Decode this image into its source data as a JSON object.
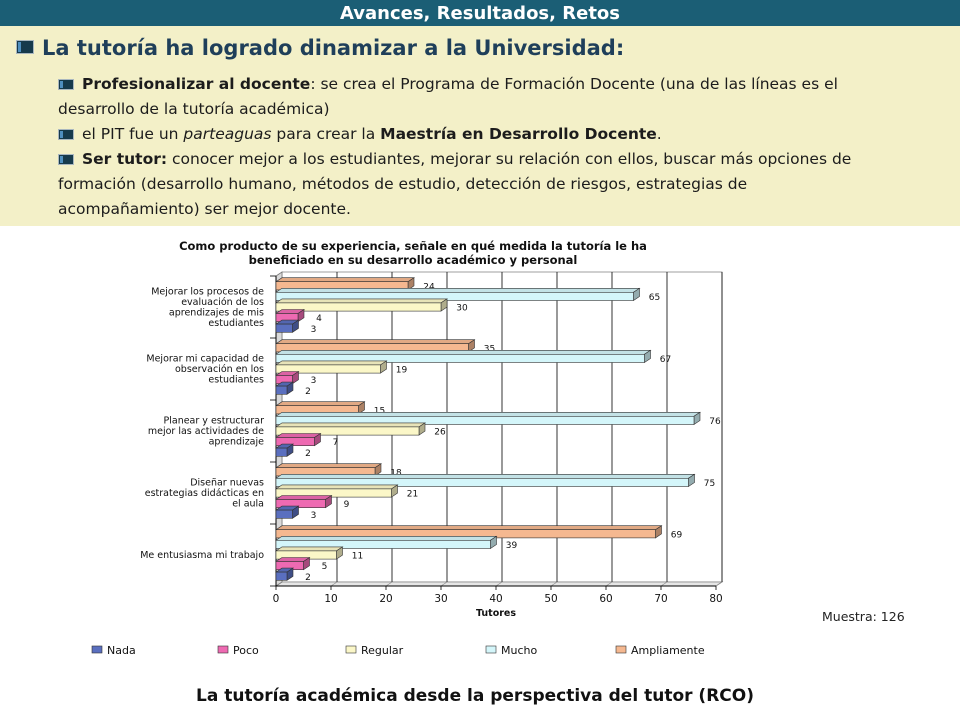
{
  "header": {
    "title": "Avances, Resultados, Retos"
  },
  "content": {
    "heading": "La tutoría ha logrado dinamizar a la Universidad:",
    "items": [
      {
        "bold": "Profesionalizar al docente",
        "rest1": ": se crea el Programa de Formación Docente (una de las líneas es el",
        "rest2": "desarrollo de la tutoría académica)"
      },
      {
        "pre": "el PIT fue un ",
        "italic": "parteaguas",
        "mid": " para crear la ",
        "bold": "Maestría en Desarrollo Docente",
        "post": "."
      },
      {
        "bold": "Ser tutor:",
        "rest1": " conocer mejor a los estudiantes, mejorar su relación con ellos, buscar más opciones de",
        "rest2": "formación (desarrollo humano, métodos de estudio, detección de riesgos, estrategias de",
        "rest3": "acompañamiento) ser mejor docente."
      }
    ]
  },
  "chart_data": {
    "type": "bar",
    "orientation": "horizontal",
    "title_lines": [
      "Como producto de su experiencia, señale en qué medida la tutoría le ha",
      "beneficiado en su desarrollo académico y personal"
    ],
    "xlabel": "Tutores",
    "xlim": [
      0,
      80
    ],
    "xticks": [
      0,
      10,
      20,
      30,
      40,
      50,
      60,
      70,
      80
    ],
    "grid": true,
    "legend_position": "bottom",
    "categories": [
      [
        "Mejorar los procesos de",
        "evaluación de los",
        "aprendizajes de mis",
        "estudiantes"
      ],
      [
        "Mejorar mi capacidad de",
        "observación en los",
        "estudiantes"
      ],
      [
        "Planear y estructurar",
        "mejor las actividades de",
        "aprendizaje"
      ],
      [
        "Diseñar nuevas",
        "estrategias didácticas en",
        "el aula"
      ],
      [
        "Me entusiasma mi trabajo"
      ]
    ],
    "series": [
      {
        "name": "Ampliamente",
        "color": "#f5b890",
        "values": [
          24,
          35,
          15,
          18,
          69
        ]
      },
      {
        "name": "Mucho",
        "color": "#d4f6fa",
        "values": [
          65,
          67,
          76,
          75,
          39
        ]
      },
      {
        "name": "Regular",
        "color": "#fbf7c8",
        "values": [
          30,
          19,
          26,
          21,
          11
        ]
      },
      {
        "name": "Poco",
        "color": "#ee6ab2",
        "values": [
          4,
          3,
          7,
          9,
          5
        ]
      },
      {
        "name": "Nada",
        "color": "#5a6fbf",
        "values": [
          3,
          2,
          2,
          3,
          2
        ]
      }
    ],
    "legend_order": [
      "Nada",
      "Poco",
      "Regular",
      "Mucho",
      "Ampliamente"
    ],
    "note": "Muestra: 126",
    "caption": "La tutoría académica desde la perspectiva del tutor (RCO)"
  }
}
